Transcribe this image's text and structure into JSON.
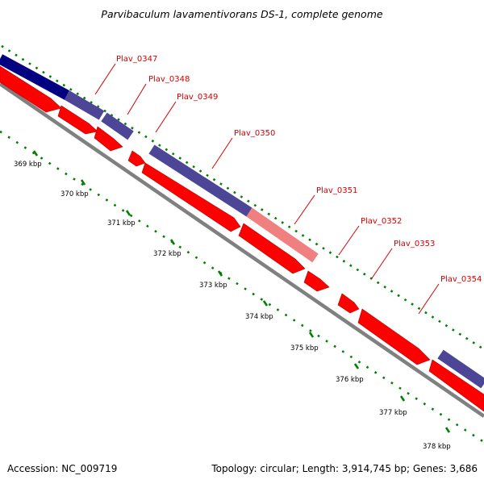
{
  "map": {
    "title": "Parvibaculum lavamentivorans DS-1, complete genome",
    "accession_text": "Accession: NC_009719",
    "summary_text": "Topology: circular; Length: 3,914,745 bp; Genes: 3,686"
  },
  "ruler": {
    "ticks": [
      {
        "label": "369 kbp"
      },
      {
        "label": "370 kbp"
      },
      {
        "label": "371 kbp"
      },
      {
        "label": "372 kbp"
      },
      {
        "label": "373 kbp"
      },
      {
        "label": "374 kbp"
      },
      {
        "label": "375 kbp"
      },
      {
        "label": "376 kbp"
      },
      {
        "label": "377 kbp"
      },
      {
        "label": "378 kbp"
      }
    ]
  },
  "genes": [
    {
      "label": "Plav_0347"
    },
    {
      "label": "Plav_0348"
    },
    {
      "label": "Plav_0349"
    },
    {
      "label": "Plav_0350"
    },
    {
      "label": "Plav_0351"
    },
    {
      "label": "Plav_0352"
    },
    {
      "label": "Plav_0353"
    },
    {
      "label": "Plav_0354"
    }
  ],
  "colors": {
    "cds": "#ff0000",
    "cds_edge": "#b80000",
    "cds_light": "#f08080",
    "feature_dark": "#000080",
    "feature": "#4d4596",
    "backbone": "#808080",
    "tick": "#008000",
    "label": "#d40000"
  }
}
